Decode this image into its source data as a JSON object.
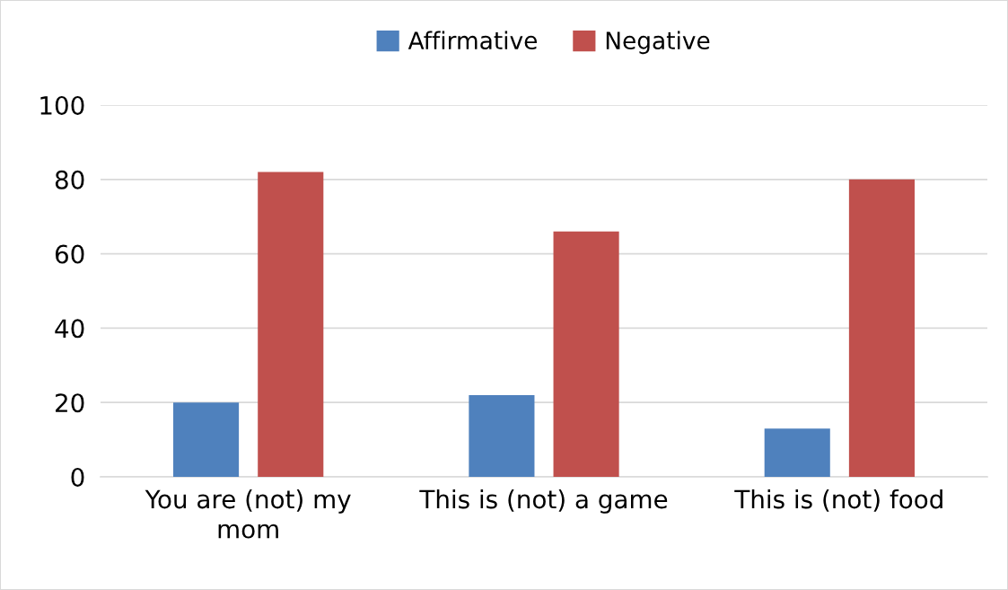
{
  "chart_data": {
    "type": "bar",
    "categories": [
      "You are (not) my mom",
      "This is (not) a game",
      "This is (not) food"
    ],
    "series": [
      {
        "name": "Affirmative",
        "color": "#4f81bd",
        "values": [
          20,
          22,
          13
        ]
      },
      {
        "name": "Negative",
        "color": "#c0504d",
        "values": [
          82,
          66,
          80
        ]
      }
    ],
    "ylim": [
      0,
      100
    ],
    "yticks": [
      0,
      20,
      40,
      60,
      80,
      100
    ],
    "grid": "y",
    "legend": "top"
  }
}
